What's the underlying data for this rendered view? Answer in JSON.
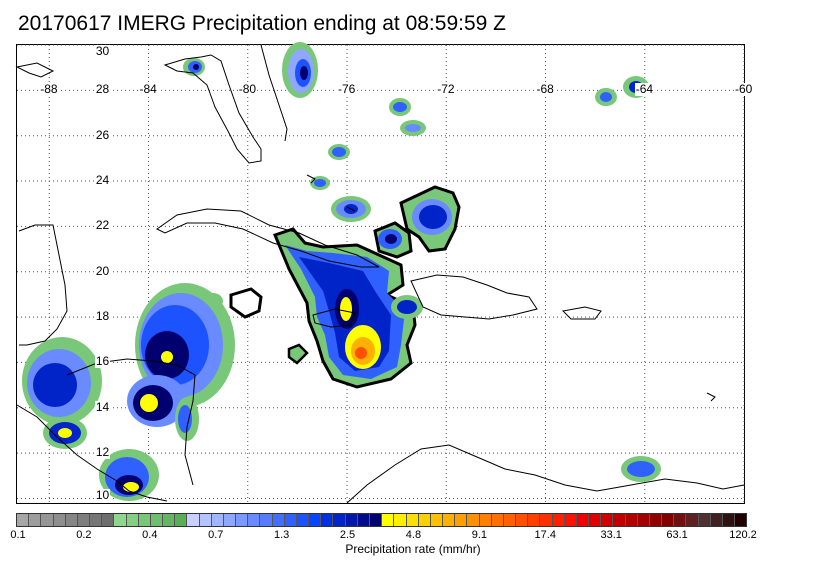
{
  "title": "20170617 IMERG Precipitation ending at 08:59:59 Z",
  "map": {
    "longitudes": [
      "-88",
      "-84",
      "-80",
      "-76",
      "-72",
      "-68",
      "-64",
      "-60"
    ],
    "latitudes": [
      "30",
      "28",
      "26",
      "24",
      "22",
      "20",
      "18",
      "16",
      "14",
      "12",
      "10"
    ],
    "lon_range": [
      -89.3,
      -60
    ],
    "lat_range": [
      9.8,
      30
    ],
    "grid": "dotted"
  },
  "colorbar": {
    "label": "Precipitation rate (mm/hr)",
    "tick_labels": [
      "0.1",
      "0.2",
      "0.4",
      "0.7",
      "1.3",
      "2.5",
      "4.8",
      "9.1",
      "17.4",
      "33.1",
      "63.1",
      "120.2"
    ],
    "colors": [
      "#a6a6a6",
      "#9e9e9e",
      "#969696",
      "#8e8e8e",
      "#868686",
      "#7e7e7e",
      "#767676",
      "#6e6e6e",
      "#8fd78f",
      "#84cf84",
      "#79c779",
      "#6ebf6e",
      "#63b763",
      "#58af58",
      "#c8d0ff",
      "#b5c3ff",
      "#a2b5ff",
      "#8fa7ff",
      "#7c99ff",
      "#698bff",
      "#567dff",
      "#436fff",
      "#3061ff",
      "#1d53ff",
      "#0a45ff",
      "#0030e6",
      "#0024c8",
      "#0018aa",
      "#000c8c",
      "#00006e",
      "#ffff00",
      "#fff000",
      "#ffe000",
      "#ffd000",
      "#ffc000",
      "#ffb000",
      "#ffa000",
      "#ff9000",
      "#ff8000",
      "#ff7000",
      "#ff6000",
      "#ff5000",
      "#ff4000",
      "#ff3000",
      "#ff2000",
      "#ff1000",
      "#f00000",
      "#e00000",
      "#d00000",
      "#c00000",
      "#b00000",
      "#a00000",
      "#900000",
      "#800000",
      "#701010",
      "#602020",
      "#503030",
      "#402020",
      "#301010",
      "#200000"
    ]
  }
}
